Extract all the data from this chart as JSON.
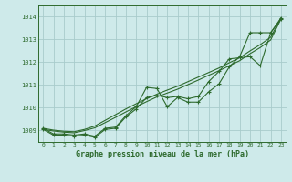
{
  "xlabel": "Graphe pression niveau de la mer (hPa)",
  "xlim": [
    -0.5,
    23.5
  ],
  "ylim": [
    1008.5,
    1014.5
  ],
  "yticks": [
    1009,
    1010,
    1011,
    1012,
    1013,
    1014
  ],
  "xticks": [
    0,
    1,
    2,
    3,
    4,
    5,
    6,
    7,
    8,
    9,
    10,
    11,
    12,
    13,
    14,
    15,
    16,
    17,
    18,
    19,
    20,
    21,
    22,
    23
  ],
  "bg_color": "#ceeaea",
  "grid_color": "#a8cccc",
  "line_color": "#2d6a2d",
  "line_marked1": [
    1009.1,
    1008.85,
    1008.85,
    1008.8,
    1008.85,
    1008.75,
    1009.1,
    1009.15,
    1009.65,
    1010.05,
    1010.9,
    1010.85,
    1010.05,
    1010.45,
    1010.25,
    1010.25,
    1010.7,
    1011.05,
    1011.8,
    1012.25,
    1013.3,
    1013.3,
    1013.3,
    1013.95
  ],
  "line_marked2": [
    1009.05,
    1008.8,
    1008.8,
    1008.75,
    1008.8,
    1008.7,
    1009.05,
    1009.1,
    1009.6,
    1009.95,
    1010.45,
    1010.55,
    1010.45,
    1010.5,
    1010.4,
    1010.5,
    1011.15,
    1011.6,
    1012.15,
    1012.2,
    1012.25,
    1011.85,
    1013.3,
    1013.9
  ],
  "line_smooth1": [
    1009.1,
    1009.02,
    1008.97,
    1008.95,
    1009.05,
    1009.2,
    1009.45,
    1009.7,
    1009.95,
    1010.18,
    1010.4,
    1010.6,
    1010.78,
    1010.95,
    1011.15,
    1011.35,
    1011.55,
    1011.75,
    1011.98,
    1012.2,
    1012.5,
    1012.78,
    1013.1,
    1013.95
  ],
  "line_smooth2": [
    1009.05,
    1008.98,
    1008.93,
    1008.9,
    1009.0,
    1009.12,
    1009.35,
    1009.58,
    1009.82,
    1010.05,
    1010.27,
    1010.48,
    1010.65,
    1010.82,
    1011.02,
    1011.22,
    1011.43,
    1011.63,
    1011.85,
    1012.07,
    1012.38,
    1012.65,
    1012.98,
    1013.9
  ]
}
